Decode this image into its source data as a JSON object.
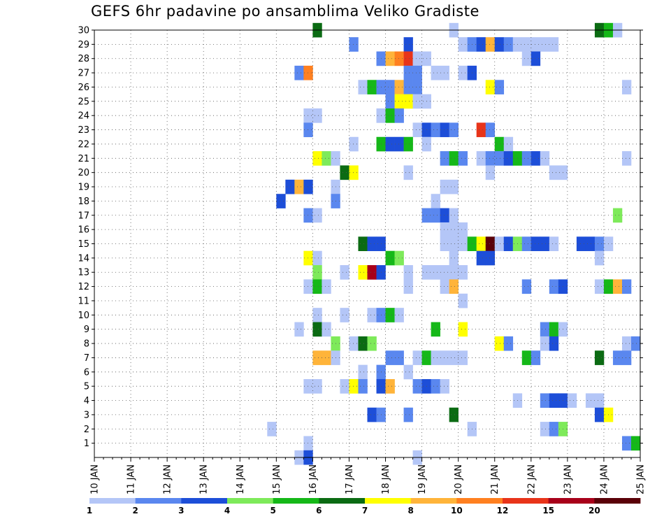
{
  "chart_data": {
    "type": "heatmap",
    "title": "GEFS 6hr padavine po ansamblima Veliko Gradiste",
    "xlabel": "",
    "ylabel": "",
    "x_tick_labels": [
      "10 JAN",
      "11 JAN",
      "12 JAN",
      "13 JAN",
      "14 JAN",
      "15 JAN",
      "16 JAN",
      "17 JAN",
      "18 JAN",
      "19 JAN",
      "20 JAN",
      "21 JAN",
      "22 JAN",
      "23 JAN",
      "24 JAN",
      "25 JAN"
    ],
    "y_tick_labels": [
      "1",
      "2",
      "3",
      "4",
      "5",
      "6",
      "7",
      "8",
      "9",
      "10",
      "11",
      "12",
      "13",
      "14",
      "15",
      "16",
      "17",
      "18",
      "19",
      "20",
      "21",
      "22",
      "23",
      "24",
      "25",
      "26",
      "27",
      "28",
      "29",
      "30"
    ],
    "xlim_days": [
      10,
      25
    ],
    "time_step_hours": 6,
    "ylim_members": [
      0,
      30
    ],
    "grid": true,
    "colorbar": {
      "position": "bottom",
      "labels": [
        "1",
        "2",
        "3",
        "4",
        "5",
        "6",
        "7",
        "8",
        "10",
        "12",
        "15",
        "20"
      ],
      "colors": [
        "#b4c6f7",
        "#5a87ef",
        "#1d4ed8",
        "#7eea5a",
        "#15b818",
        "#0b6b13",
        "#ffff00",
        "#ffb43a",
        "#ff8020",
        "#e8341a",
        "#a8001a",
        "#5a0008"
      ]
    },
    "cells": [
      [
        30,
        16,
        6
      ],
      [
        30,
        19.75,
        1
      ],
      [
        30,
        23.75,
        6
      ],
      [
        30,
        24,
        5
      ],
      [
        30,
        24.25,
        1
      ],
      [
        29,
        17,
        2
      ],
      [
        29,
        18.5,
        3
      ],
      [
        29,
        20,
        1
      ],
      [
        29,
        20.25,
        2
      ],
      [
        29,
        20.5,
        3
      ],
      [
        29,
        20.75,
        8
      ],
      [
        29,
        21,
        3
      ],
      [
        29,
        21.25,
        2
      ],
      [
        29,
        21.5,
        1
      ],
      [
        29,
        21.75,
        1
      ],
      [
        29,
        22,
        1
      ],
      [
        29,
        22.25,
        1
      ],
      [
        29,
        22.5,
        1
      ],
      [
        28,
        17.75,
        2
      ],
      [
        28,
        18,
        8
      ],
      [
        28,
        18.25,
        9
      ],
      [
        28,
        18.5,
        10
      ],
      [
        28,
        18.75,
        1
      ],
      [
        28,
        19,
        1
      ],
      [
        28,
        21.75,
        1
      ],
      [
        28,
        22,
        3
      ],
      [
        27,
        15.5,
        2
      ],
      [
        27,
        15.75,
        9
      ],
      [
        27,
        18.5,
        2
      ],
      [
        27,
        18.75,
        2
      ],
      [
        27,
        19.25,
        1
      ],
      [
        27,
        19.5,
        1
      ],
      [
        27,
        20,
        1
      ],
      [
        27,
        20.25,
        3
      ],
      [
        26,
        17.25,
        1
      ],
      [
        26,
        17.5,
        5
      ],
      [
        26,
        17.75,
        2
      ],
      [
        26,
        18,
        2
      ],
      [
        26,
        18.25,
        8
      ],
      [
        26,
        18.5,
        2
      ],
      [
        26,
        18.75,
        2
      ],
      [
        26,
        20.75,
        7
      ],
      [
        26,
        21,
        2
      ],
      [
        26,
        24.5,
        1
      ],
      [
        25,
        18,
        2
      ],
      [
        25,
        18.25,
        7
      ],
      [
        25,
        18.5,
        7
      ],
      [
        25,
        18.75,
        1
      ],
      [
        25,
        19,
        1
      ],
      [
        24,
        15.75,
        1
      ],
      [
        24,
        16,
        1
      ],
      [
        24,
        17.75,
        1
      ],
      [
        24,
        18,
        5
      ],
      [
        24,
        18.25,
        2
      ],
      [
        23,
        15.75,
        2
      ],
      [
        23,
        18.75,
        1
      ],
      [
        23,
        19,
        3
      ],
      [
        23,
        19.25,
        2
      ],
      [
        23,
        19.5,
        3
      ],
      [
        23,
        19.75,
        2
      ],
      [
        23,
        20.5,
        10
      ],
      [
        23,
        20.75,
        2
      ],
      [
        22,
        17,
        1
      ],
      [
        22,
        17.75,
        5
      ],
      [
        22,
        18,
        3
      ],
      [
        22,
        18.25,
        3
      ],
      [
        22,
        18.5,
        5
      ],
      [
        22,
        19,
        1
      ],
      [
        22,
        21,
        5
      ],
      [
        22,
        21.25,
        1
      ],
      [
        21,
        16,
        7
      ],
      [
        21,
        16.25,
        4
      ],
      [
        21,
        16.5,
        1
      ],
      [
        21,
        19.5,
        2
      ],
      [
        21,
        19.75,
        5
      ],
      [
        21,
        20,
        2
      ],
      [
        21,
        20.5,
        1
      ],
      [
        21,
        20.75,
        2
      ],
      [
        21,
        21,
        2
      ],
      [
        21,
        21.25,
        3
      ],
      [
        21,
        21.5,
        5
      ],
      [
        21,
        21.75,
        2
      ],
      [
        21,
        22,
        3
      ],
      [
        21,
        22.25,
        1
      ],
      [
        21,
        24.5,
        1
      ],
      [
        20,
        16.75,
        6
      ],
      [
        20,
        17,
        7
      ],
      [
        20,
        18.5,
        1
      ],
      [
        20,
        20.75,
        1
      ],
      [
        20,
        22.5,
        1
      ],
      [
        20,
        22.75,
        1
      ],
      [
        19,
        15.25,
        3
      ],
      [
        19,
        15.5,
        8
      ],
      [
        19,
        15.75,
        3
      ],
      [
        19,
        16.5,
        1
      ],
      [
        19,
        19.5,
        1
      ],
      [
        19,
        19.75,
        1
      ],
      [
        18,
        15,
        3
      ],
      [
        18,
        16.5,
        2
      ],
      [
        18,
        19.25,
        1
      ],
      [
        17,
        15.75,
        2
      ],
      [
        17,
        16,
        1
      ],
      [
        17,
        19,
        2
      ],
      [
        17,
        19.25,
        2
      ],
      [
        17,
        19.5,
        3
      ],
      [
        17,
        19.75,
        1
      ],
      [
        17,
        24.25,
        4
      ],
      [
        16,
        19.5,
        1
      ],
      [
        16,
        19.75,
        1
      ],
      [
        16,
        20,
        1
      ],
      [
        15,
        17.25,
        6
      ],
      [
        15,
        17.5,
        3
      ],
      [
        15,
        17.75,
        3
      ],
      [
        15,
        19.5,
        1
      ],
      [
        15,
        19.75,
        1
      ],
      [
        15,
        20,
        1
      ],
      [
        15,
        20.25,
        5
      ],
      [
        15,
        20.5,
        7
      ],
      [
        15,
        20.75,
        12
      ],
      [
        15,
        21,
        1
      ],
      [
        15,
        21.25,
        3
      ],
      [
        15,
        21.5,
        4
      ],
      [
        15,
        21.75,
        2
      ],
      [
        15,
        22,
        3
      ],
      [
        15,
        22.25,
        3
      ],
      [
        15,
        22.5,
        1
      ],
      [
        15,
        23.25,
        3
      ],
      [
        15,
        23.5,
        3
      ],
      [
        15,
        23.75,
        2
      ],
      [
        15,
        24,
        1
      ],
      [
        14,
        15.75,
        7
      ],
      [
        14,
        16,
        1
      ],
      [
        14,
        18,
        5
      ],
      [
        14,
        18.25,
        4
      ],
      [
        14,
        19.75,
        1
      ],
      [
        14,
        20.5,
        3
      ],
      [
        14,
        20.75,
        3
      ],
      [
        14,
        23.75,
        1
      ],
      [
        13,
        16,
        4
      ],
      [
        13,
        16.75,
        1
      ],
      [
        13,
        17.25,
        7
      ],
      [
        13,
        17.5,
        11
      ],
      [
        13,
        17.75,
        3
      ],
      [
        13,
        18.5,
        1
      ],
      [
        13,
        19,
        1
      ],
      [
        13,
        19.25,
        1
      ],
      [
        13,
        19.5,
        1
      ],
      [
        13,
        19.75,
        1
      ],
      [
        13,
        20,
        1
      ],
      [
        12,
        15.75,
        1
      ],
      [
        12,
        16,
        5
      ],
      [
        12,
        16.25,
        1
      ],
      [
        12,
        18.5,
        1
      ],
      [
        12,
        19.5,
        1
      ],
      [
        12,
        19.75,
        8
      ],
      [
        12,
        21.75,
        2
      ],
      [
        12,
        22.5,
        2
      ],
      [
        12,
        22.75,
        3
      ],
      [
        12,
        23.75,
        1
      ],
      [
        12,
        24,
        5
      ],
      [
        12,
        24.25,
        8
      ],
      [
        12,
        24.5,
        2
      ],
      [
        11,
        20,
        1
      ],
      [
        10,
        16,
        1
      ],
      [
        10,
        16.75,
        1
      ],
      [
        10,
        17.5,
        1
      ],
      [
        10,
        17.75,
        2
      ],
      [
        10,
        18,
        5
      ],
      [
        10,
        18.25,
        1
      ],
      [
        9,
        15.5,
        1
      ],
      [
        9,
        16,
        6
      ],
      [
        9,
        16.25,
        1
      ],
      [
        9,
        19.25,
        5
      ],
      [
        9,
        20,
        7
      ],
      [
        9,
        22.25,
        2
      ],
      [
        9,
        22.5,
        5
      ],
      [
        9,
        22.75,
        1
      ],
      [
        8,
        16.5,
        4
      ],
      [
        8,
        17,
        1
      ],
      [
        8,
        17.25,
        6
      ],
      [
        8,
        17.5,
        4
      ],
      [
        8,
        21,
        7
      ],
      [
        8,
        21.25,
        2
      ],
      [
        8,
        22.25,
        1
      ],
      [
        8,
        22.5,
        3
      ],
      [
        8,
        24.5,
        1
      ],
      [
        8,
        24.75,
        2
      ],
      [
        7,
        16,
        8
      ],
      [
        7,
        16.25,
        8
      ],
      [
        7,
        16.5,
        1
      ],
      [
        7,
        18,
        2
      ],
      [
        7,
        18.25,
        2
      ],
      [
        7,
        18.75,
        1
      ],
      [
        7,
        19,
        5
      ],
      [
        7,
        19.25,
        1
      ],
      [
        7,
        19.5,
        1
      ],
      [
        7,
        19.75,
        1
      ],
      [
        7,
        20,
        1
      ],
      [
        7,
        21.75,
        5
      ],
      [
        7,
        22,
        2
      ],
      [
        7,
        23.75,
        6
      ],
      [
        7,
        24.25,
        2
      ],
      [
        7,
        24.5,
        2
      ],
      [
        6,
        17.25,
        1
      ],
      [
        6,
        17.75,
        2
      ],
      [
        6,
        18.5,
        1
      ],
      [
        5,
        15.75,
        1
      ],
      [
        5,
        16,
        1
      ],
      [
        5,
        16.75,
        1
      ],
      [
        5,
        17,
        7
      ],
      [
        5,
        17.25,
        2
      ],
      [
        5,
        17.75,
        3
      ],
      [
        5,
        18,
        8
      ],
      [
        5,
        18.75,
        2
      ],
      [
        5,
        19,
        3
      ],
      [
        5,
        19.25,
        2
      ],
      [
        5,
        19.5,
        1
      ],
      [
        4,
        21.5,
        1
      ],
      [
        4,
        22.25,
        2
      ],
      [
        4,
        22.5,
        3
      ],
      [
        4,
        22.75,
        3
      ],
      [
        4,
        23,
        1
      ],
      [
        4,
        23.5,
        1
      ],
      [
        4,
        23.75,
        1
      ],
      [
        3,
        17.5,
        3
      ],
      [
        3,
        17.75,
        2
      ],
      [
        3,
        18.5,
        2
      ],
      [
        3,
        19.75,
        6
      ],
      [
        3,
        23.75,
        3
      ],
      [
        3,
        24,
        7
      ],
      [
        2,
        14.75,
        1
      ],
      [
        2,
        20.25,
        1
      ],
      [
        2,
        22.25,
        1
      ],
      [
        2,
        22.5,
        2
      ],
      [
        2,
        22.75,
        4
      ],
      [
        1,
        15.75,
        1
      ],
      [
        1,
        24.5,
        2
      ],
      [
        1,
        24.75,
        5
      ],
      [
        0,
        15.5,
        1
      ],
      [
        0,
        15.75,
        3
      ],
      [
        0,
        18.75,
        1
      ]
    ]
  }
}
